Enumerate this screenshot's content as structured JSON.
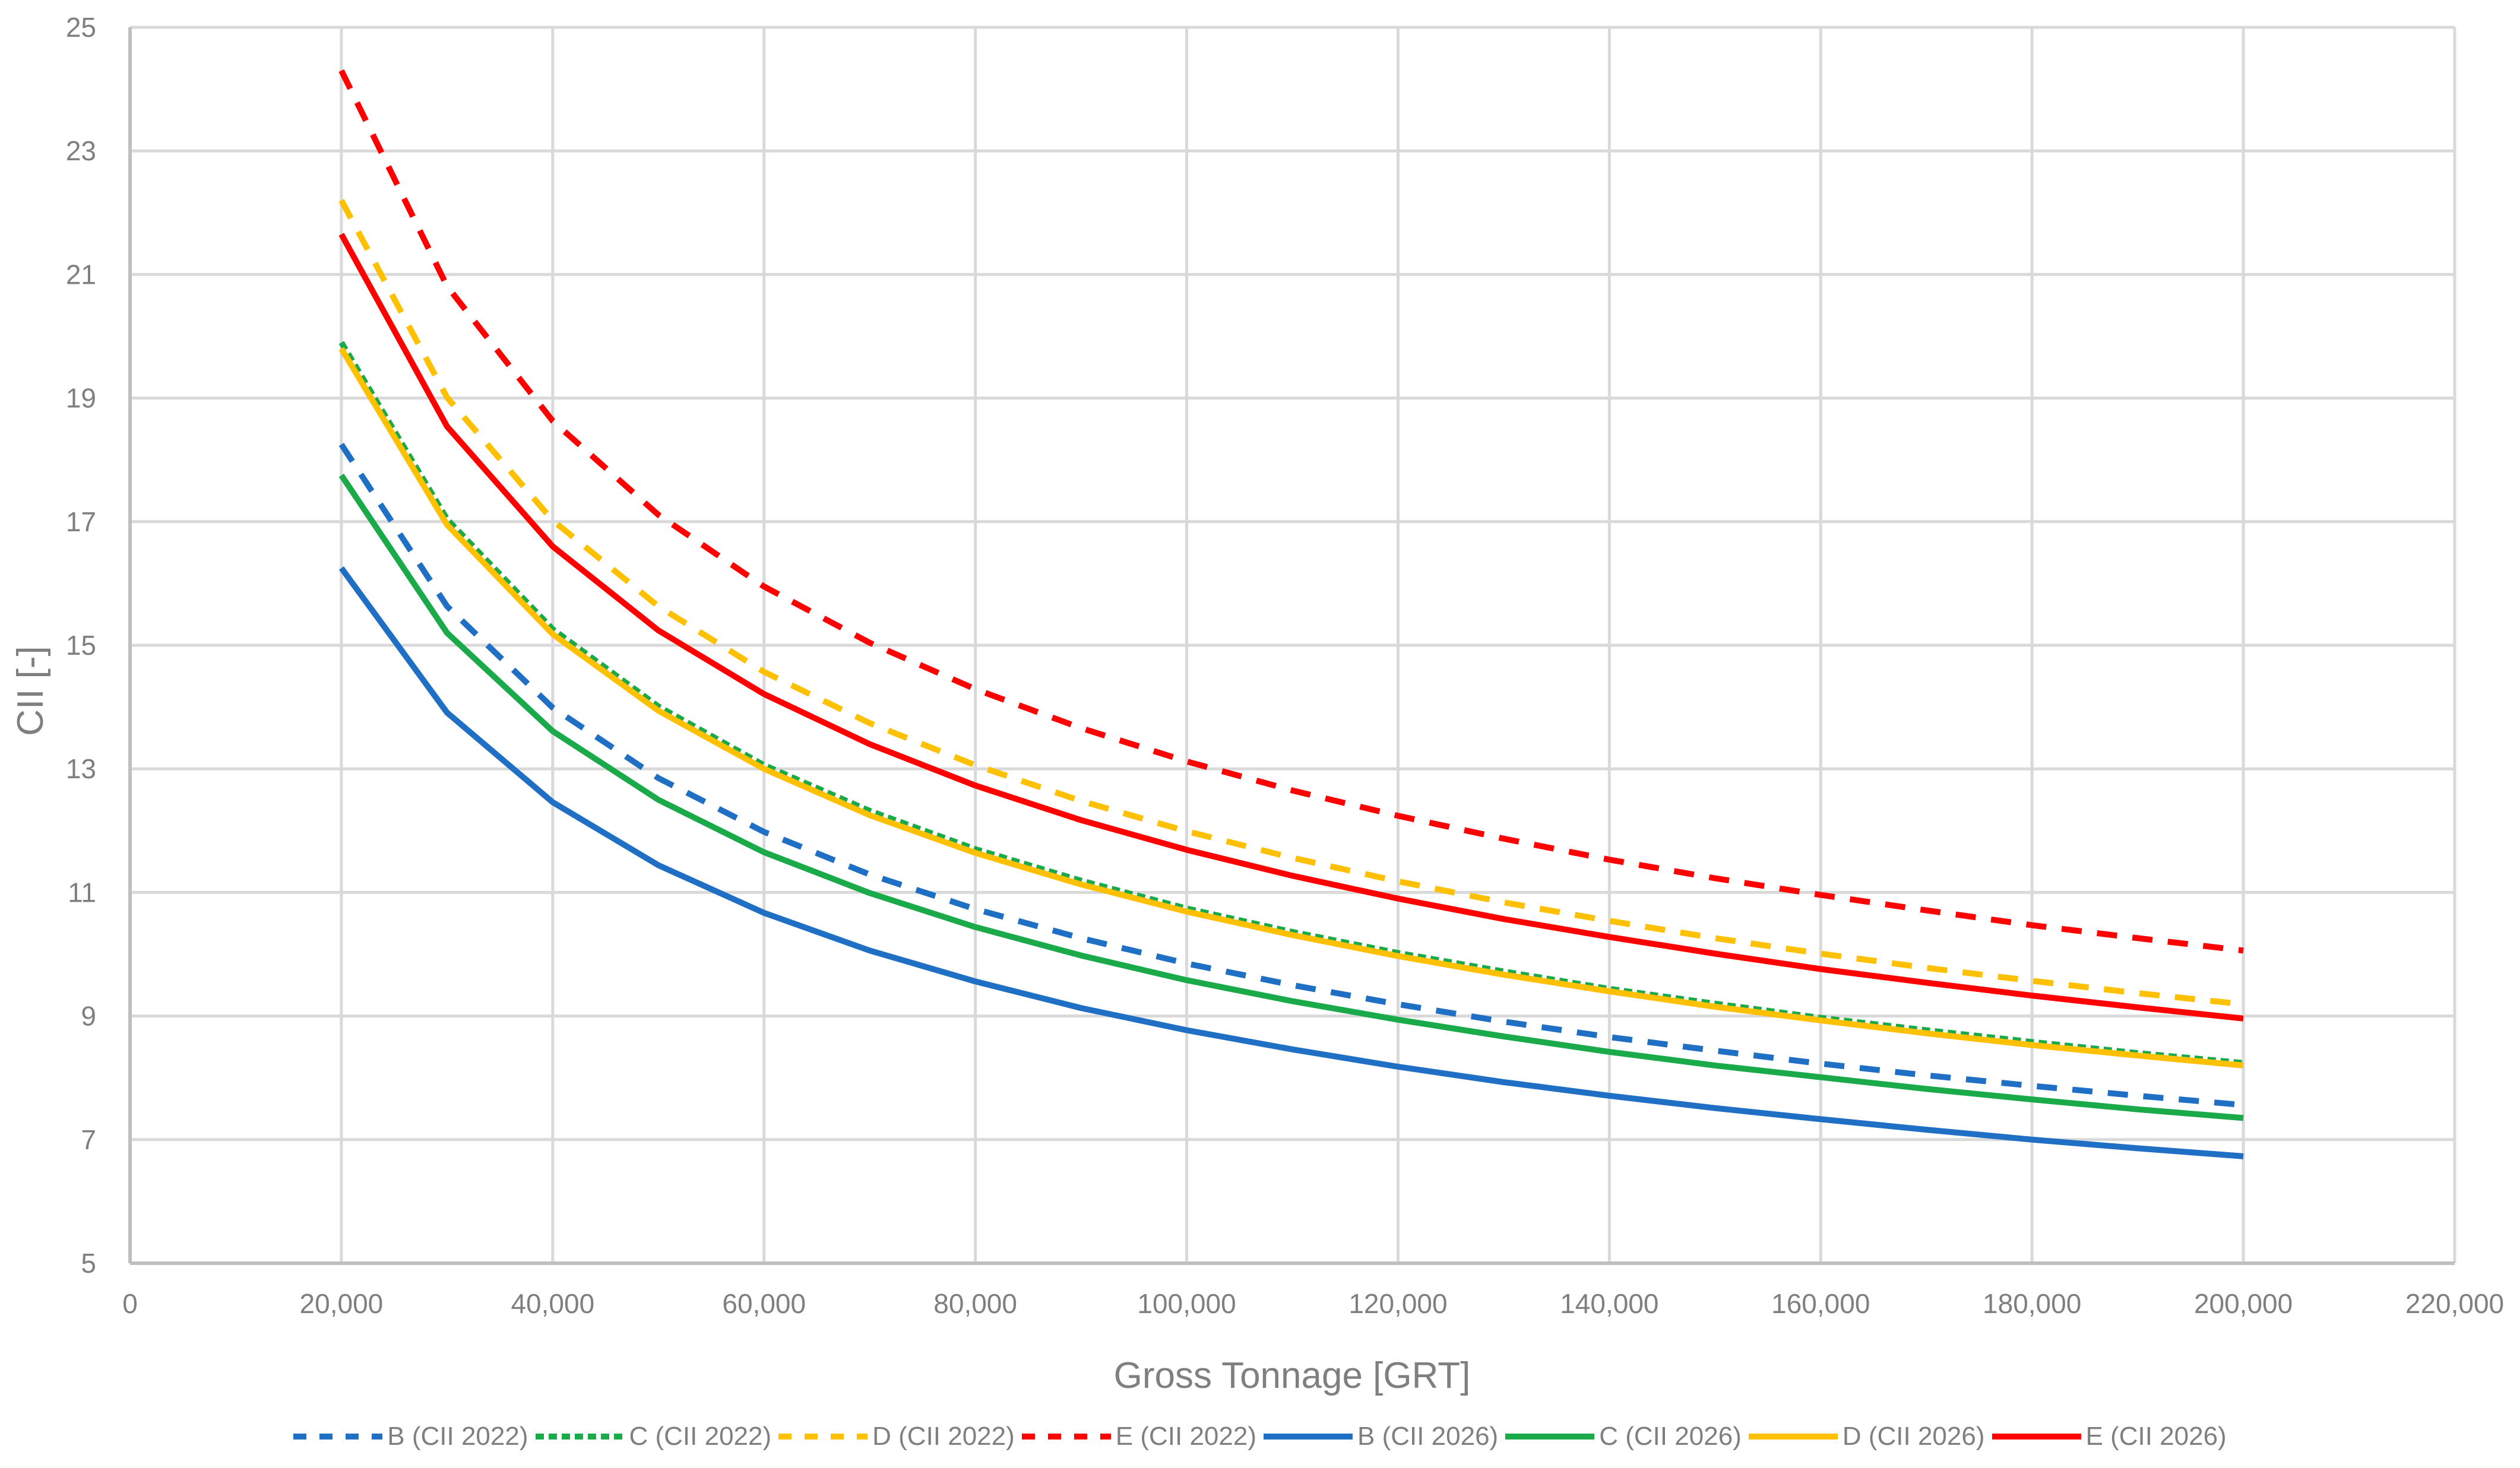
{
  "chart_data": {
    "type": "line",
    "title": "",
    "xlabel": "Gross Tonnage [GRT]",
    "ylabel": "CII [-]",
    "xlim": [
      0,
      220000
    ],
    "ylim": [
      5,
      25
    ],
    "x_ticks": [
      0,
      20000,
      40000,
      60000,
      80000,
      100000,
      120000,
      140000,
      160000,
      180000,
      200000,
      220000
    ],
    "x_tick_labels": [
      "0",
      "20,000",
      "40,000",
      "60,000",
      "80,000",
      "100,000",
      "120,000",
      "140,000",
      "160,000",
      "180,000",
      "200,000",
      "220,000"
    ],
    "y_ticks": [
      5,
      7,
      9,
      11,
      13,
      15,
      17,
      19,
      21,
      23,
      25
    ],
    "y_tick_labels": [
      "5",
      "7",
      "9",
      "11",
      "13",
      "15",
      "17",
      "19",
      "21",
      "23",
      "25"
    ],
    "grid": true,
    "legend_position": "bottom",
    "x": [
      20000,
      30000,
      40000,
      50000,
      60000,
      70000,
      80000,
      90000,
      100000,
      110000,
      120000,
      130000,
      140000,
      150000,
      160000,
      170000,
      180000,
      190000,
      200000
    ],
    "series": [
      {
        "name": "B (CII 2022)",
        "color": "#1f6fc4",
        "dash": "dashed",
        "values": [
          18.25,
          15.63,
          13.99,
          12.85,
          11.98,
          11.29,
          10.73,
          10.26,
          9.85,
          9.5,
          9.19,
          8.91,
          8.66,
          8.44,
          8.23,
          8.04,
          7.87,
          7.71,
          7.56
        ]
      },
      {
        "name": "C (CII 2022)",
        "color": "#1aaa4a",
        "dash": "dotted",
        "values": [
          19.9,
          17.04,
          15.26,
          14.01,
          13.06,
          12.32,
          11.7,
          11.19,
          10.74,
          10.36,
          10.02,
          9.72,
          9.44,
          9.2,
          8.97,
          8.77,
          8.58,
          8.4,
          8.24
        ]
      },
      {
        "name": "D (CII 2022)",
        "color": "#ffc000",
        "dash": "dashed",
        "values": [
          22.2,
          19.01,
          17.02,
          15.63,
          14.57,
          13.74,
          13.06,
          12.48,
          11.99,
          11.56,
          11.18,
          10.84,
          10.54,
          10.26,
          10.01,
          9.78,
          9.57,
          9.37,
          9.19
        ]
      },
      {
        "name": "E (CII 2022)",
        "color": "#ff0000",
        "dash": "dashed",
        "values": [
          24.3,
          20.81,
          18.63,
          17.11,
          15.95,
          15.04,
          14.29,
          13.66,
          13.12,
          12.65,
          12.24,
          11.87,
          11.53,
          11.23,
          10.96,
          10.71,
          10.47,
          10.26,
          10.06
        ]
      },
      {
        "name": "B (CII 2026)",
        "color": "#1f6fc4",
        "dash": "solid",
        "values": [
          16.25,
          13.91,
          12.46,
          11.44,
          10.67,
          10.06,
          9.56,
          9.13,
          8.77,
          8.46,
          8.18,
          7.93,
          7.71,
          7.51,
          7.33,
          7.16,
          7.0,
          6.86,
          6.73
        ]
      },
      {
        "name": "C (CII 2026)",
        "color": "#1aaa4a",
        "dash": "solid",
        "values": [
          17.75,
          15.2,
          13.61,
          12.5,
          11.65,
          10.99,
          10.44,
          9.98,
          9.58,
          9.24,
          8.94,
          8.67,
          8.42,
          8.2,
          8.01,
          7.82,
          7.65,
          7.49,
          7.35
        ]
      },
      {
        "name": "D (CII 2026)",
        "color": "#ffc000",
        "dash": "solid",
        "values": [
          19.8,
          16.95,
          15.18,
          13.94,
          13.0,
          12.25,
          11.64,
          11.13,
          10.69,
          10.31,
          9.97,
          9.67,
          9.4,
          9.15,
          8.93,
          8.72,
          8.53,
          8.36,
          8.2
        ]
      },
      {
        "name": "E (CII 2026)",
        "color": "#ff0000",
        "dash": "solid",
        "values": [
          21.65,
          18.54,
          16.6,
          15.24,
          14.21,
          13.4,
          12.73,
          12.17,
          11.69,
          11.27,
          10.9,
          10.57,
          10.28,
          10.01,
          9.76,
          9.54,
          9.33,
          9.14,
          8.96
        ]
      }
    ]
  },
  "colors": {
    "grid": "#d9d9d9",
    "axis": "#bfbfbf",
    "text": "#7f7f7f"
  }
}
